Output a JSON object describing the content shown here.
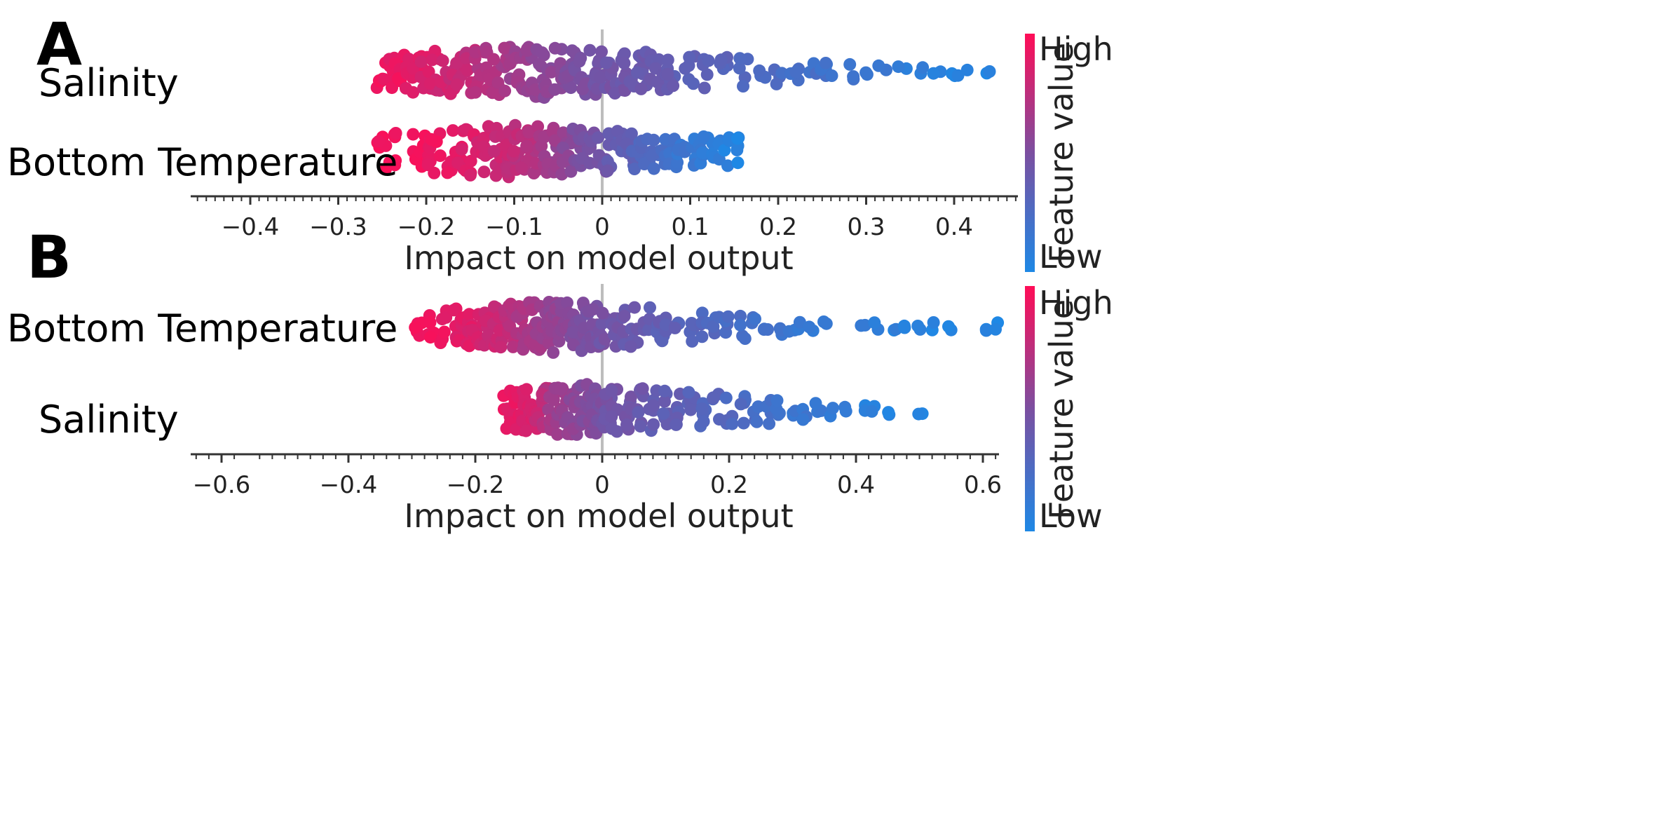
{
  "colors": {
    "high": "#ff0d57",
    "low": "#1e88e5",
    "mid": "#7b4fa0",
    "zero_line": "#bdbdbd",
    "axis": "#333333"
  },
  "chart_data": [
    {
      "type": "scatter",
      "subtype": "shap-beeswarm",
      "panel": "A",
      "xlabel": "Impact on model output",
      "xlim": [
        -0.46,
        0.47
      ],
      "xticks": [
        -0.4,
        -0.3,
        -0.2,
        -0.1,
        0,
        0.1,
        0.2,
        0.3,
        0.4
      ],
      "xtick_labels": [
        "−0.4",
        "−0.3",
        "−0.2",
        "−0.1",
        "0",
        "0.1",
        "0.2",
        "0.3",
        "0.4"
      ],
      "colorbar": {
        "title": "Feature value",
        "high": "High",
        "low": "Low"
      },
      "features": [
        {
          "name": "Salinity",
          "x_range": [
            -0.25,
            0.44
          ],
          "points": [
            [
              -0.25,
              0.95
            ],
            [
              -0.24,
              0.9
            ],
            [
              -0.23,
              0.93
            ],
            [
              -0.22,
              0.88
            ],
            [
              -0.21,
              0.9
            ],
            [
              -0.2,
              0.86
            ],
            [
              -0.19,
              0.84
            ],
            [
              -0.18,
              0.82
            ],
            [
              -0.17,
              0.8
            ],
            [
              -0.16,
              0.78
            ],
            [
              -0.15,
              0.76
            ],
            [
              -0.14,
              0.72
            ],
            [
              -0.13,
              0.7
            ],
            [
              -0.12,
              0.68
            ],
            [
              -0.11,
              0.66
            ],
            [
              -0.1,
              0.64
            ],
            [
              -0.09,
              0.62
            ],
            [
              -0.08,
              0.6
            ],
            [
              -0.07,
              0.58
            ],
            [
              -0.06,
              0.56
            ],
            [
              -0.05,
              0.54
            ],
            [
              -0.04,
              0.52
            ],
            [
              -0.03,
              0.5
            ],
            [
              -0.02,
              0.49
            ],
            [
              -0.01,
              0.47
            ],
            [
              0.0,
              0.46
            ],
            [
              0.01,
              0.45
            ],
            [
              0.02,
              0.44
            ],
            [
              0.03,
              0.43
            ],
            [
              0.04,
              0.42
            ],
            [
              0.05,
              0.41
            ],
            [
              0.06,
              0.4
            ],
            [
              0.07,
              0.38
            ],
            [
              0.08,
              0.37
            ],
            [
              0.1,
              0.35
            ],
            [
              0.12,
              0.33
            ],
            [
              0.14,
              0.31
            ],
            [
              0.16,
              0.29
            ],
            [
              0.18,
              0.27
            ],
            [
              0.2,
              0.25
            ],
            [
              0.22,
              0.23
            ],
            [
              0.24,
              0.21
            ],
            [
              0.25,
              0.2
            ],
            [
              0.26,
              0.19
            ],
            [
              0.28,
              0.17
            ],
            [
              0.3,
              0.15
            ],
            [
              0.32,
              0.13
            ],
            [
              0.34,
              0.11
            ],
            [
              0.36,
              0.09
            ],
            [
              0.38,
              0.08
            ],
            [
              0.4,
              0.06
            ],
            [
              0.41,
              0.05
            ],
            [
              0.44,
              0.02
            ]
          ]
        },
        {
          "name": "Bottom Temperature",
          "x_range": [
            -0.25,
            0.15
          ],
          "points": [
            [
              -0.25,
              0.97
            ],
            [
              -0.24,
              0.96
            ],
            [
              -0.21,
              0.95
            ],
            [
              -0.2,
              0.94
            ],
            [
              -0.19,
              0.93
            ],
            [
              -0.17,
              0.9
            ],
            [
              -0.16,
              0.88
            ],
            [
              -0.15,
              0.86
            ],
            [
              -0.14,
              0.84
            ],
            [
              -0.13,
              0.82
            ],
            [
              -0.12,
              0.8
            ],
            [
              -0.11,
              0.78
            ],
            [
              -0.1,
              0.76
            ],
            [
              -0.09,
              0.74
            ],
            [
              -0.08,
              0.72
            ],
            [
              -0.07,
              0.68
            ],
            [
              -0.06,
              0.64
            ],
            [
              -0.05,
              0.6
            ],
            [
              -0.04,
              0.56
            ],
            [
              -0.03,
              0.52
            ],
            [
              -0.02,
              0.5
            ],
            [
              -0.01,
              0.46
            ],
            [
              0.0,
              0.44
            ],
            [
              0.01,
              0.4
            ],
            [
              0.02,
              0.37
            ],
            [
              0.03,
              0.34
            ],
            [
              0.04,
              0.3
            ],
            [
              0.05,
              0.27
            ],
            [
              0.06,
              0.24
            ],
            [
              0.07,
              0.21
            ],
            [
              0.08,
              0.18
            ],
            [
              0.09,
              0.15
            ],
            [
              0.1,
              0.13
            ],
            [
              0.11,
              0.11
            ],
            [
              0.12,
              0.09
            ],
            [
              0.13,
              0.07
            ],
            [
              0.14,
              0.05
            ],
            [
              0.15,
              0.03
            ]
          ]
        }
      ]
    },
    {
      "type": "scatter",
      "subtype": "shap-beeswarm",
      "panel": "B",
      "xlabel": "Impact on model output",
      "xlim": [
        -0.65,
        0.65
      ],
      "xticks": [
        -0.6,
        -0.4,
        -0.2,
        0,
        0.2,
        0.4,
        0.6
      ],
      "xtick_labels": [
        "−0.6",
        "−0.4",
        "−0.2",
        "0",
        "0.2",
        "0.4",
        "0.6"
      ],
      "colorbar": {
        "title": "Feature value",
        "high": "High",
        "low": "Low"
      },
      "features": [
        {
          "name": "Bottom Temperature",
          "x_range": [
            -0.29,
            0.62
          ],
          "points": [
            [
              -0.29,
              0.96
            ],
            [
              -0.27,
              0.94
            ],
            [
              -0.25,
              0.92
            ],
            [
              -0.23,
              0.9
            ],
            [
              -0.22,
              0.88
            ],
            [
              -0.21,
              0.87
            ],
            [
              -0.2,
              0.86
            ],
            [
              -0.19,
              0.84
            ],
            [
              -0.18,
              0.82
            ],
            [
              -0.17,
              0.8
            ],
            [
              -0.16,
              0.78
            ],
            [
              -0.15,
              0.76
            ],
            [
              -0.14,
              0.73
            ],
            [
              -0.13,
              0.7
            ],
            [
              -0.12,
              0.68
            ],
            [
              -0.11,
              0.66
            ],
            [
              -0.1,
              0.64
            ],
            [
              -0.09,
              0.62
            ],
            [
              -0.08,
              0.6
            ],
            [
              -0.07,
              0.58
            ],
            [
              -0.06,
              0.56
            ],
            [
              -0.05,
              0.54
            ],
            [
              -0.04,
              0.52
            ],
            [
              -0.03,
              0.5
            ],
            [
              -0.02,
              0.48
            ],
            [
              -0.01,
              0.47
            ],
            [
              0.0,
              0.46
            ],
            [
              0.02,
              0.44
            ],
            [
              0.03,
              0.42
            ],
            [
              0.05,
              0.4
            ],
            [
              0.07,
              0.38
            ],
            [
              0.09,
              0.36
            ],
            [
              0.1,
              0.35
            ],
            [
              0.12,
              0.33
            ],
            [
              0.14,
              0.31
            ],
            [
              0.16,
              0.29
            ],
            [
              0.18,
              0.27
            ],
            [
              0.2,
              0.25
            ],
            [
              0.22,
              0.23
            ],
            [
              0.24,
              0.21
            ],
            [
              0.26,
              0.19
            ],
            [
              0.28,
              0.17
            ],
            [
              0.3,
              0.15
            ],
            [
              0.31,
              0.14
            ],
            [
              0.33,
              0.13
            ],
            [
              0.35,
              0.12
            ],
            [
              0.41,
              0.09
            ],
            [
              0.43,
              0.08
            ],
            [
              0.46,
              0.07
            ],
            [
              0.48,
              0.06
            ],
            [
              0.5,
              0.05
            ],
            [
              0.52,
              0.04
            ],
            [
              0.55,
              0.03
            ],
            [
              0.6,
              0.02
            ],
            [
              0.62,
              0.01
            ]
          ]
        },
        {
          "name": "Salinity",
          "x_range": [
            -0.15,
            0.5
          ],
          "points": [
            [
              -0.15,
              0.92
            ],
            [
              -0.14,
              0.9
            ],
            [
              -0.13,
              0.88
            ],
            [
              -0.12,
              0.86
            ],
            [
              -0.11,
              0.84
            ],
            [
              -0.1,
              0.8
            ],
            [
              -0.09,
              0.72
            ],
            [
              -0.08,
              0.66
            ],
            [
              -0.07,
              0.62
            ],
            [
              -0.06,
              0.6
            ],
            [
              -0.05,
              0.58
            ],
            [
              -0.04,
              0.56
            ],
            [
              -0.03,
              0.54
            ],
            [
              -0.02,
              0.52
            ],
            [
              -0.01,
              0.5
            ],
            [
              0.0,
              0.48
            ],
            [
              0.01,
              0.46
            ],
            [
              0.02,
              0.45
            ],
            [
              0.04,
              0.43
            ],
            [
              0.06,
              0.41
            ],
            [
              0.08,
              0.39
            ],
            [
              0.1,
              0.37
            ],
            [
              0.12,
              0.35
            ],
            [
              0.14,
              0.33
            ],
            [
              0.16,
              0.31
            ],
            [
              0.18,
              0.29
            ],
            [
              0.2,
              0.27
            ],
            [
              0.22,
              0.25
            ],
            [
              0.24,
              0.23
            ],
            [
              0.26,
              0.21
            ],
            [
              0.28,
              0.19
            ],
            [
              0.3,
              0.17
            ],
            [
              0.32,
              0.15
            ],
            [
              0.34,
              0.13
            ],
            [
              0.36,
              0.11
            ],
            [
              0.38,
              0.09
            ],
            [
              0.41,
              0.07
            ],
            [
              0.43,
              0.06
            ],
            [
              0.45,
              0.05
            ],
            [
              0.5,
              0.03
            ]
          ]
        }
      ]
    }
  ]
}
